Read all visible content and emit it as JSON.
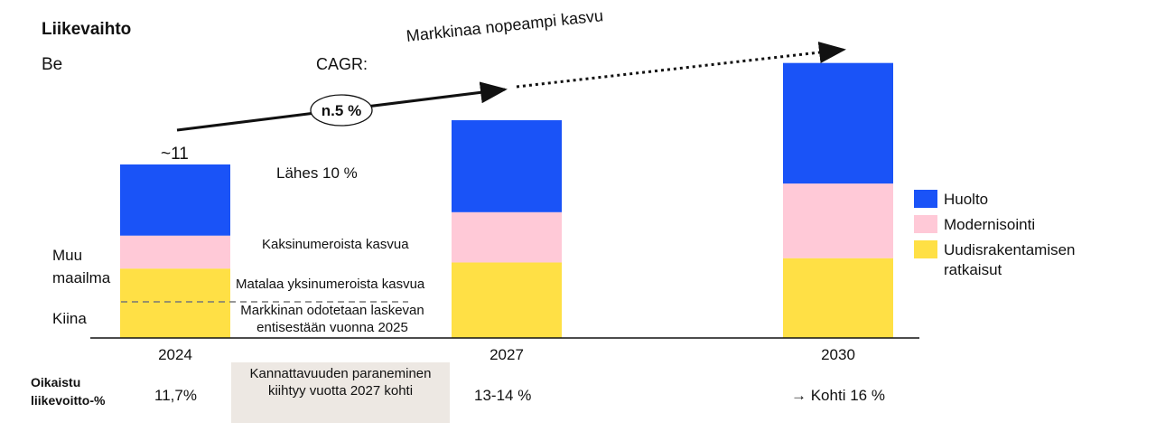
{
  "chart_data": {
    "type": "bar",
    "stacked": true,
    "title": "Liikevaihto",
    "unit": "Be",
    "categories": [
      "2024",
      "2027",
      "2030"
    ],
    "series": [
      {
        "name": "Uudisrakentamisen ratkaisut",
        "values": [
          4.0,
          4.35,
          4.6
        ],
        "color": "#ffe045"
      },
      {
        "name": "Modernisointi",
        "values": [
          1.9,
          2.9,
          4.3
        ],
        "color": "#ffc9d7"
      },
      {
        "name": "Huolto",
        "values": [
          4.1,
          5.3,
          6.95
        ],
        "color": "#1a53f7"
      }
    ],
    "total_label_2024": "~11",
    "cagr_label": "CAGR:",
    "cagr_value": "n.5 %",
    "market_label": "Markkinaa nopeampi kasvu",
    "growth_annotations": [
      "Lähes 10 %",
      "Kaksinumeroista kasvua",
      "Matalaa yksinumeroista kasvua",
      "Markkinan odotetaan laskevan entisestään vuonna 2025"
    ],
    "regions": [
      "Muu",
      "maailma",
      "Kiina"
    ],
    "ebit_label": "Oikaistu liikevoitto-%",
    "ebit_values": [
      "11,7%",
      "13-14 %",
      "→ Kohti 16 %"
    ],
    "callout": "Kannattavuuden paraneminen kiihtyy vuotta 2027 kohti",
    "legend_position": "right",
    "grid": false
  }
}
